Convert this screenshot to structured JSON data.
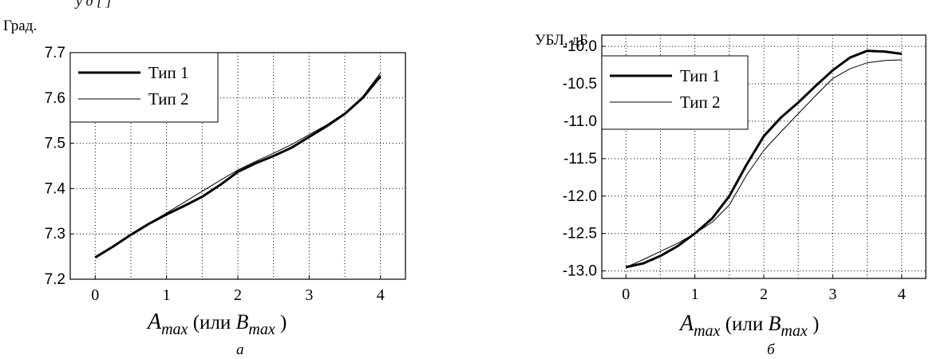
{
  "page": {
    "top_text_fragment": "у    д     [ ]"
  },
  "chart_data": [
    {
      "type": "line",
      "sublabel": "а",
      "ylabel": "Град.",
      "xlabel": {
        "a": "A",
        "a_sub": "max",
        "mid": " (или ",
        "b": "B",
        "b_sub": "max",
        "end": " )"
      },
      "xlim": [
        -0.35,
        4.35
      ],
      "ylim": [
        7.2,
        7.7
      ],
      "xticks": [
        0,
        1,
        2,
        3,
        4
      ],
      "yticks": [
        7.2,
        7.3,
        7.4,
        7.5,
        7.6,
        7.7
      ],
      "ytick_labels": [
        "7.2",
        "7.3",
        "7.4",
        "7.5",
        "7.6",
        "7.7"
      ],
      "grid": "dotted",
      "legend": "top-left",
      "series": [
        {
          "name": "Тип 1",
          "line": "thick",
          "x": [
            0,
            0.25,
            0.5,
            0.75,
            1.0,
            1.25,
            1.5,
            1.75,
            2.0,
            2.25,
            2.5,
            2.75,
            3.0,
            3.25,
            3.5,
            3.75,
            4.0
          ],
          "y": [
            7.248,
            7.272,
            7.298,
            7.322,
            7.343,
            7.362,
            7.382,
            7.408,
            7.437,
            7.456,
            7.472,
            7.49,
            7.514,
            7.538,
            7.565,
            7.6,
            7.648
          ]
        },
        {
          "name": "Тип 2",
          "line": "thin",
          "x": [
            0,
            0.25,
            0.5,
            0.75,
            1.0,
            1.25,
            1.5,
            1.75,
            2.0,
            2.25,
            2.5,
            2.75,
            3.0,
            3.25,
            3.5,
            3.75,
            4.0
          ],
          "y": [
            7.248,
            7.273,
            7.299,
            7.323,
            7.346,
            7.37,
            7.394,
            7.418,
            7.441,
            7.46,
            7.478,
            7.497,
            7.519,
            7.541,
            7.567,
            7.603,
            7.655
          ]
        }
      ]
    },
    {
      "type": "line",
      "sublabel": "б",
      "ylabel": "УБЛ, дБ",
      "xlabel": {
        "a": "A",
        "a_sub": "max",
        "mid": " (или ",
        "b": "B",
        "b_sub": "max",
        "end": " )"
      },
      "xlim": [
        -0.35,
        4.35
      ],
      "ylim": [
        -13.1,
        -9.85
      ],
      "xticks": [
        0,
        1,
        2,
        3,
        4
      ],
      "yticks": [
        -13.0,
        -12.5,
        -12.0,
        -11.5,
        -11.0,
        -10.5,
        -10.0
      ],
      "ytick_labels": [
        "-13.0",
        "-12.5",
        "-12.0",
        "-11.5",
        "-11.0",
        "-10.5",
        "-10.0"
      ],
      "grid": "dotted",
      "legend": "top-left",
      "series": [
        {
          "name": "Тип 1",
          "line": "thick",
          "x": [
            0,
            0.25,
            0.5,
            0.75,
            1.0,
            1.25,
            1.5,
            1.75,
            2.0,
            2.25,
            2.5,
            2.75,
            3.0,
            3.25,
            3.5,
            3.75,
            4.0
          ],
          "y": [
            -12.95,
            -12.9,
            -12.8,
            -12.67,
            -12.5,
            -12.3,
            -12.0,
            -11.58,
            -11.2,
            -10.95,
            -10.75,
            -10.53,
            -10.32,
            -10.15,
            -10.06,
            -10.07,
            -10.1
          ]
        },
        {
          "name": "Тип 2",
          "line": "thin",
          "x": [
            0,
            0.25,
            0.5,
            0.75,
            1.0,
            1.25,
            1.5,
            1.75,
            2.0,
            2.25,
            2.5,
            2.75,
            3.0,
            3.25,
            3.5,
            3.75,
            4.0
          ],
          "y": [
            -12.95,
            -12.85,
            -12.74,
            -12.63,
            -12.5,
            -12.35,
            -12.12,
            -11.72,
            -11.39,
            -11.14,
            -10.9,
            -10.66,
            -10.43,
            -10.3,
            -10.22,
            -10.19,
            -10.18
          ]
        }
      ]
    }
  ]
}
